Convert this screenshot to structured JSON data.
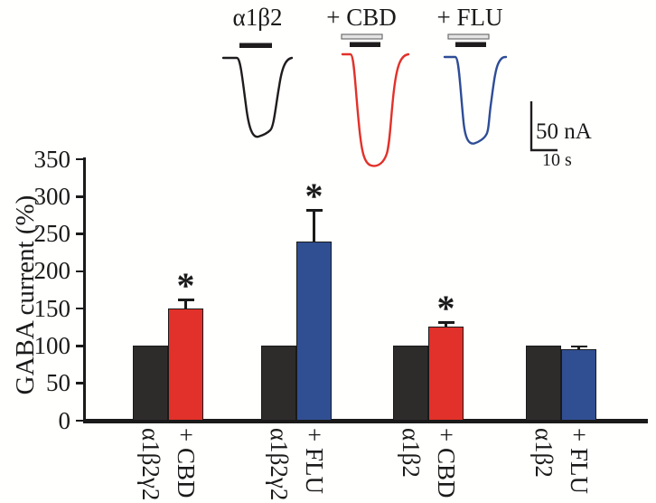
{
  "traces": {
    "items": [
      {
        "label": "α1β2"
      },
      {
        "label": "+ CBD"
      },
      {
        "label": "+ FLU"
      }
    ],
    "scalebar": {
      "current": "50 nA",
      "time": "10 s"
    }
  },
  "chart_data": {
    "type": "bar",
    "ylabel": "GABA current (%)",
    "ylim": [
      0,
      350
    ],
    "yticks": [
      0,
      50,
      100,
      150,
      200,
      250,
      300,
      350
    ],
    "groups": [
      {
        "bars": [
          {
            "label": "α1β2γ2",
            "value": 100,
            "color": "black"
          },
          {
            "label": "+ CBD",
            "value": 150,
            "error": 13,
            "significance": "*",
            "color": "red"
          }
        ]
      },
      {
        "bars": [
          {
            "label": "α1β2γ2",
            "value": 100,
            "color": "black"
          },
          {
            "label": "+ FLU",
            "value": 240,
            "error": 43,
            "significance": "*",
            "color": "blue"
          }
        ]
      },
      {
        "bars": [
          {
            "label": "α1β2",
            "value": 100,
            "color": "black"
          },
          {
            "label": "+ CBD",
            "value": 126,
            "error": 7,
            "significance": "*",
            "color": "red"
          }
        ]
      },
      {
        "bars": [
          {
            "label": "α1β2",
            "value": 100,
            "color": "black"
          },
          {
            "label": "+ FLU",
            "value": 96,
            "error": 5,
            "color": "blue"
          }
        ]
      }
    ]
  },
  "colors": {
    "bar_fill": {
      "black": "#2e2c2b",
      "red": "#e2312a",
      "blue": "#304f92"
    },
    "axis": "#1a1a1a",
    "trace_black": "#1f1c1d",
    "trace_red": "#e2312a",
    "trace_blue": "#2e4d97",
    "drug_bar_fill": "#e4e4e4",
    "drug_bar_stroke": "#6f6f6f"
  }
}
